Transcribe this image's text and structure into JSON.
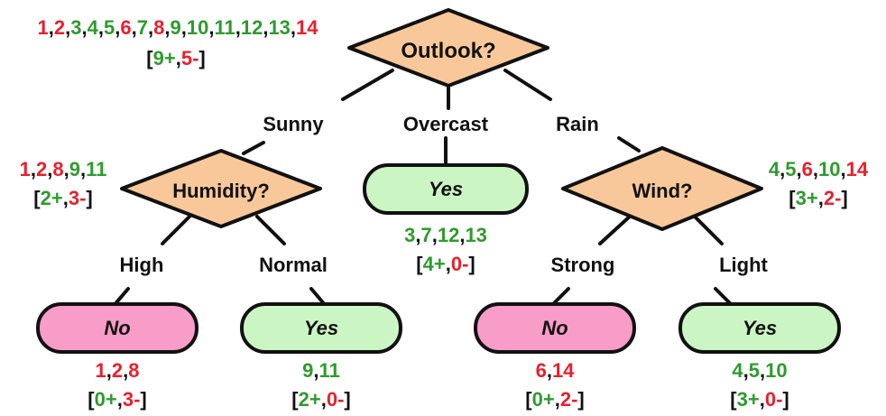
{
  "colors": {
    "positive": "#2e9b2e",
    "negative": "#e8202e",
    "decision_fill": "#f9c89a",
    "yes_fill": "#ccf5c4",
    "no_fill": "#f89cc8",
    "stroke": "#111111",
    "text": "#111111"
  },
  "root": {
    "question": "Outlook?",
    "examples": [
      {
        "id": "1",
        "sign": "-"
      },
      {
        "id": "2",
        "sign": "-"
      },
      {
        "id": "3",
        "sign": "+"
      },
      {
        "id": "4",
        "sign": "+"
      },
      {
        "id": "5",
        "sign": "+"
      },
      {
        "id": "6",
        "sign": "-"
      },
      {
        "id": "7",
        "sign": "+"
      },
      {
        "id": "8",
        "sign": "-"
      },
      {
        "id": "9",
        "sign": "+"
      },
      {
        "id": "10",
        "sign": "+"
      },
      {
        "id": "11",
        "sign": "+"
      },
      {
        "id": "12",
        "sign": "+"
      },
      {
        "id": "13",
        "sign": "+"
      },
      {
        "id": "14",
        "sign": "-"
      }
    ],
    "count": {
      "pos": "9+",
      "neg": "5-"
    }
  },
  "branches": {
    "sunny": "Sunny",
    "overcast": "Overcast",
    "rain": "Rain",
    "high": "High",
    "normal": "Normal",
    "strong": "Strong",
    "light": "Light"
  },
  "humidity": {
    "question": "Humidity?",
    "examples": [
      {
        "id": "1",
        "sign": "-"
      },
      {
        "id": "2",
        "sign": "-"
      },
      {
        "id": "8",
        "sign": "-"
      },
      {
        "id": "9",
        "sign": "+"
      },
      {
        "id": "11",
        "sign": "+"
      }
    ],
    "count": {
      "pos": "2+",
      "neg": "3-"
    }
  },
  "wind": {
    "question": "Wind?",
    "examples": [
      {
        "id": "4",
        "sign": "+"
      },
      {
        "id": "5",
        "sign": "+"
      },
      {
        "id": "6",
        "sign": "-"
      },
      {
        "id": "10",
        "sign": "+"
      },
      {
        "id": "14",
        "sign": "-"
      }
    ],
    "count": {
      "pos": "3+",
      "neg": "2-"
    }
  },
  "leaves": {
    "overcast": {
      "label": "Yes",
      "examples": [
        {
          "id": "3",
          "sign": "+"
        },
        {
          "id": "7",
          "sign": "+"
        },
        {
          "id": "12",
          "sign": "+"
        },
        {
          "id": "13",
          "sign": "+"
        }
      ],
      "count": {
        "pos": "4+",
        "neg": "0-"
      }
    },
    "high": {
      "label": "No",
      "examples": [
        {
          "id": "1",
          "sign": "-"
        },
        {
          "id": "2",
          "sign": "-"
        },
        {
          "id": "8",
          "sign": "-"
        }
      ],
      "count": {
        "pos": "0+",
        "neg": "3-"
      }
    },
    "normal": {
      "label": "Yes",
      "examples": [
        {
          "id": "9",
          "sign": "+"
        },
        {
          "id": "11",
          "sign": "+"
        }
      ],
      "count": {
        "pos": "2+",
        "neg": "0-"
      }
    },
    "strong": {
      "label": "No",
      "examples": [
        {
          "id": "6",
          "sign": "-"
        },
        {
          "id": "14",
          "sign": "-"
        }
      ],
      "count": {
        "pos": "0+",
        "neg": "2-"
      }
    },
    "light": {
      "label": "Yes",
      "examples": [
        {
          "id": "4",
          "sign": "+"
        },
        {
          "id": "5",
          "sign": "+"
        },
        {
          "id": "10",
          "sign": "+"
        }
      ],
      "count": {
        "pos": "3+",
        "neg": "0-"
      }
    }
  }
}
